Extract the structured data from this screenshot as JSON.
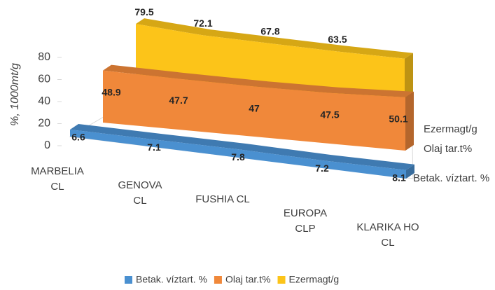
{
  "chart_data": {
    "type": "area3d",
    "y_label": "%, 1000mt/g",
    "categories": [
      "MARBELIA CL",
      "GENOVA CL",
      "FUSHIA CL",
      "EUROPA CLP",
      "KLARIKA HO CL"
    ],
    "series": [
      {
        "name": "Betak. víztart. %",
        "color": "#4a90d0",
        "values": [
          6.6,
          7.1,
          7.8,
          7.2,
          8.1
        ]
      },
      {
        "name": "Olaj tar.t%",
        "color": "#f0883a",
        "values": [
          48.9,
          47.7,
          47,
          47.5,
          50.1
        ]
      },
      {
        "name": "Ezermagt/g",
        "color": "#fcc419",
        "values": [
          79.5,
          72.1,
          67.8,
          63.5,
          60
        ],
        "value_labels": [
          "79.5",
          "72.1",
          "67.8",
          "63.5",
          null
        ]
      }
    ],
    "ylim": [
      0,
      80
    ],
    "yticks": [
      0,
      20,
      40,
      60,
      80
    ]
  }
}
